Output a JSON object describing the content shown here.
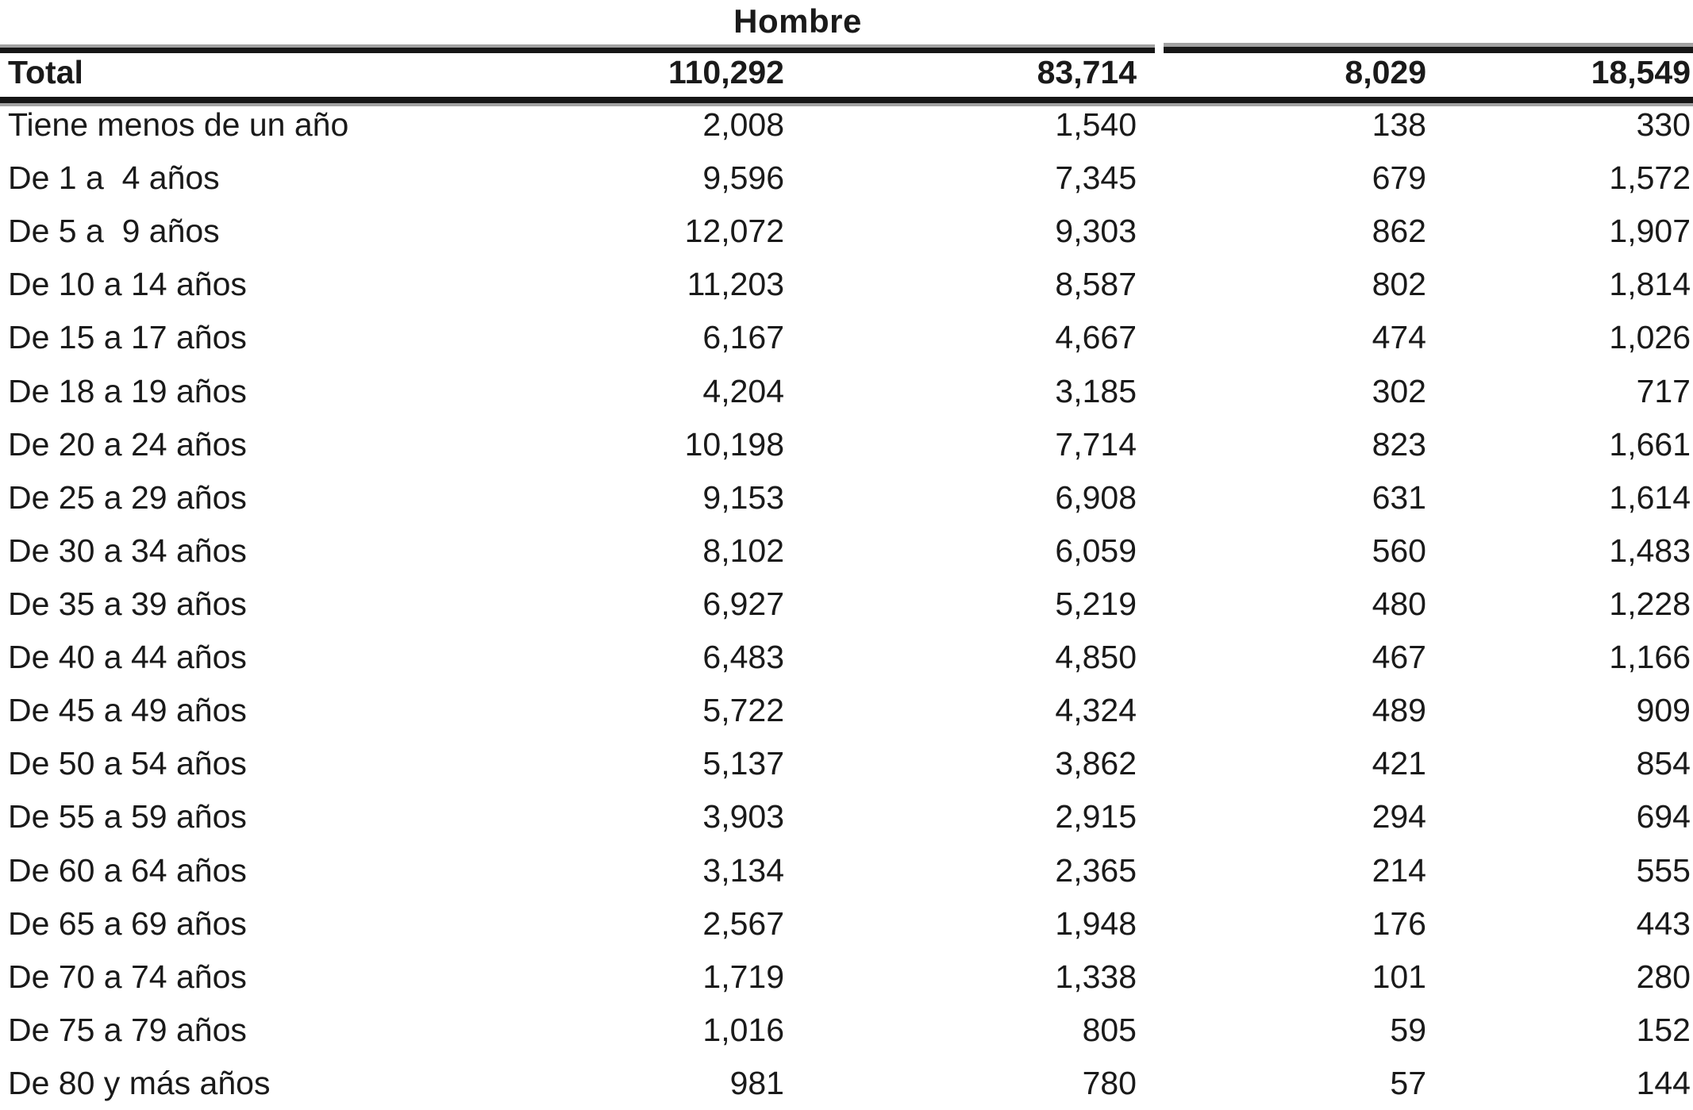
{
  "page": {
    "background": "#ffffff",
    "text_color": "#1a1a1a",
    "rule_dark_color": "#161616",
    "rule_gray_color": "#a2a2a2"
  },
  "table": {
    "group_header": "Hombre",
    "total_row": {
      "label": "Total",
      "values": [
        "110,292",
        "83,714",
        "8,029",
        "18,549"
      ]
    },
    "rows": [
      {
        "label": "Tiene menos de un año",
        "values": [
          "2,008",
          "1,540",
          "138",
          "330"
        ]
      },
      {
        "label": "De 1 a  4 años",
        "values": [
          "9,596",
          "7,345",
          "679",
          "1,572"
        ]
      },
      {
        "label": "De 5 a  9 años",
        "values": [
          "12,072",
          "9,303",
          "862",
          "1,907"
        ]
      },
      {
        "label": "De 10 a 14 años",
        "values": [
          "11,203",
          "8,587",
          "802",
          "1,814"
        ]
      },
      {
        "label": "De 15 a 17 años",
        "values": [
          "6,167",
          "4,667",
          "474",
          "1,026"
        ]
      },
      {
        "label": "De 18 a 19 años",
        "values": [
          "4,204",
          "3,185",
          "302",
          "717"
        ]
      },
      {
        "label": "De 20 a 24 años",
        "values": [
          "10,198",
          "7,714",
          "823",
          "1,661"
        ]
      },
      {
        "label": "De 25 a 29 años",
        "values": [
          "9,153",
          "6,908",
          "631",
          "1,614"
        ]
      },
      {
        "label": "De 30 a 34 años",
        "values": [
          "8,102",
          "6,059",
          "560",
          "1,483"
        ]
      },
      {
        "label": "De 35 a 39 años",
        "values": [
          "6,927",
          "5,219",
          "480",
          "1,228"
        ]
      },
      {
        "label": "De 40 a 44 años",
        "values": [
          "6,483",
          "4,850",
          "467",
          "1,166"
        ]
      },
      {
        "label": "De 45 a 49 años",
        "values": [
          "5,722",
          "4,324",
          "489",
          "909"
        ]
      },
      {
        "label": "De 50 a 54 años",
        "values": [
          "5,137",
          "3,862",
          "421",
          "854"
        ]
      },
      {
        "label": "De 55 a 59 años",
        "values": [
          "3,903",
          "2,915",
          "294",
          "694"
        ]
      },
      {
        "label": "De 60 a 64 años",
        "values": [
          "3,134",
          "2,365",
          "214",
          "555"
        ]
      },
      {
        "label": "De 65 a 69 años",
        "values": [
          "2,567",
          "1,948",
          "176",
          "443"
        ]
      },
      {
        "label": "De 70 a 74 años",
        "values": [
          "1,719",
          "1,338",
          "101",
          "280"
        ]
      },
      {
        "label": "De 75 a 79 años",
        "values": [
          "1,016",
          "805",
          "59",
          "152"
        ]
      },
      {
        "label": "De 80 y más años",
        "values": [
          "981",
          "780",
          "57",
          "144"
        ]
      }
    ]
  }
}
